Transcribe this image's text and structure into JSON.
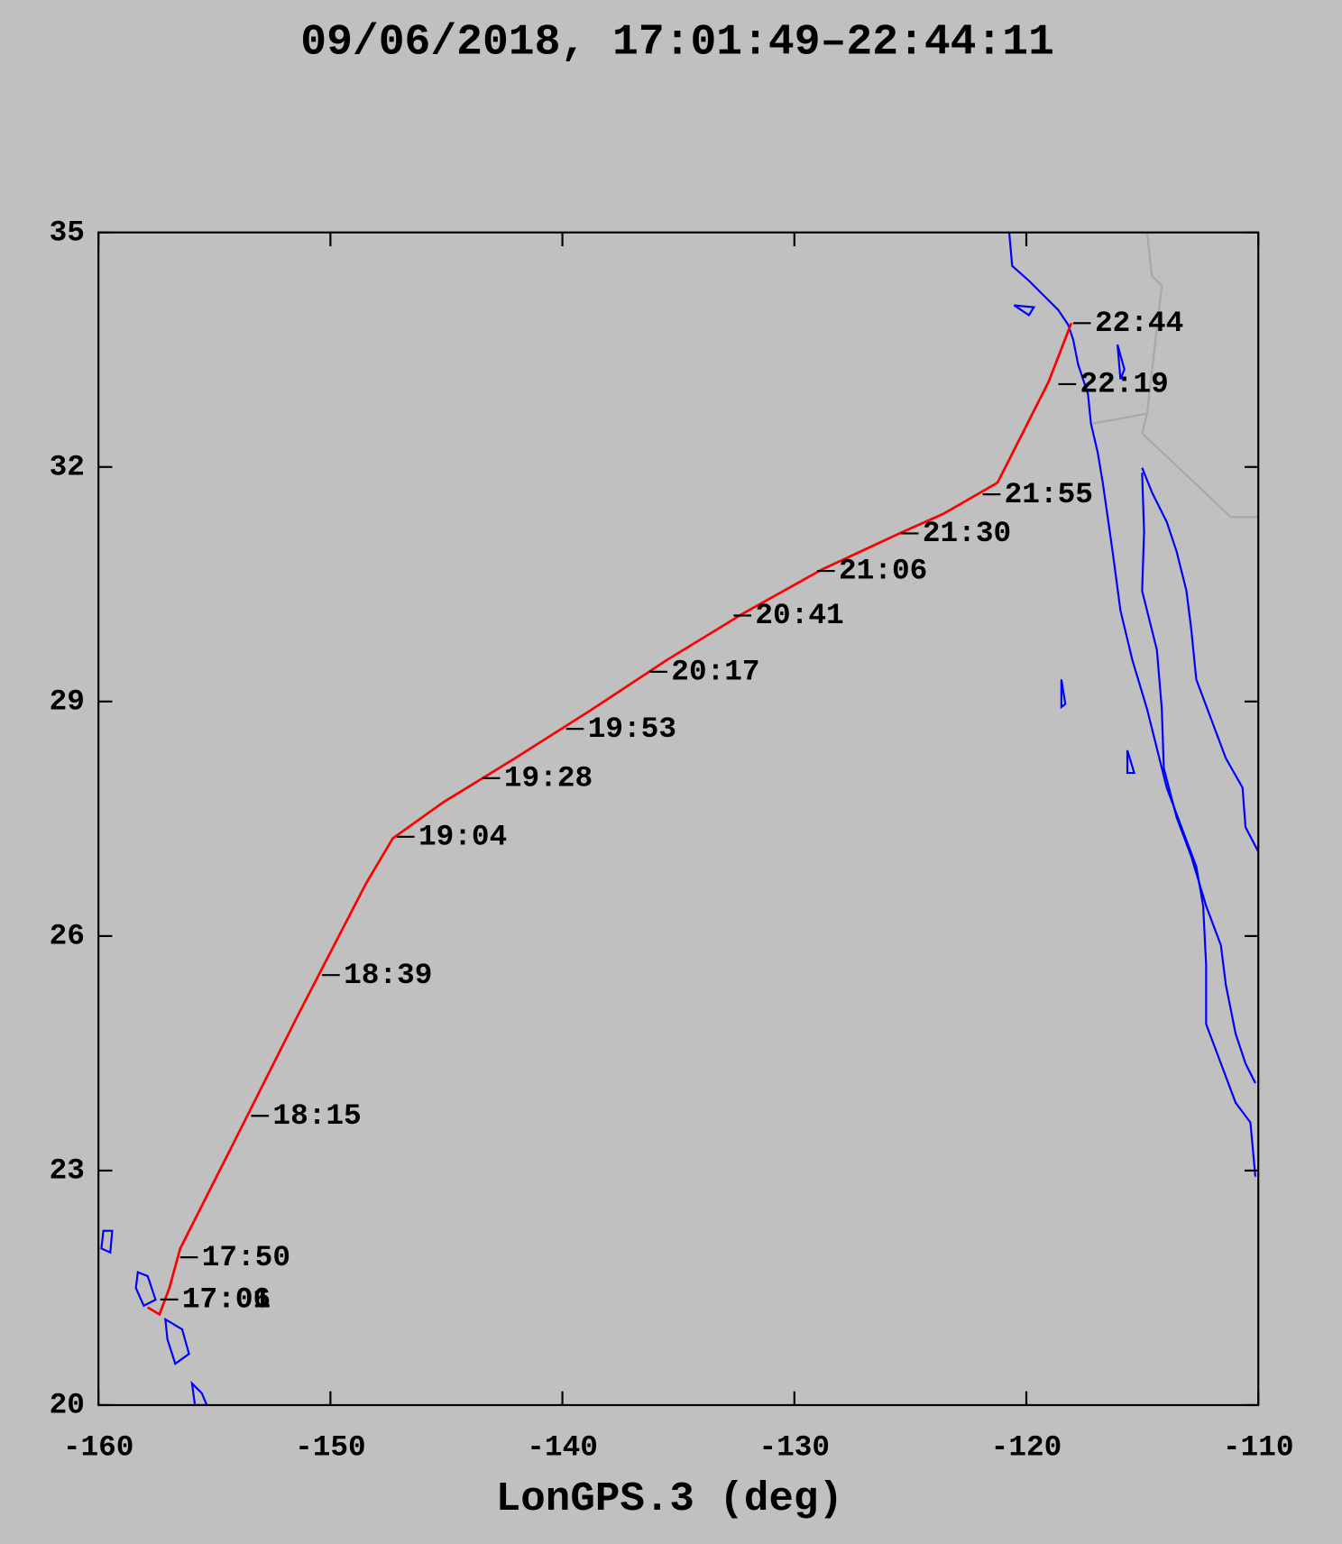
{
  "chart_data": {
    "type": "line",
    "title": "09/06/2018, 17:01:49–22:44:11",
    "x_label": "LonGPS.3 (deg)",
    "color": "#ff0000",
    "x": [
      -157.88,
      -157.37,
      -156.94,
      -156.48,
      -154.23,
      -151.38,
      -148.45,
      -147.31,
      -145.14,
      -142.17,
      -138.77,
      -135.5,
      -132.19,
      -128.8,
      -125.4,
      -123.58,
      -121.24,
      -119.04,
      -118.06
    ],
    "values": [
      21.25,
      21.16,
      21.5,
      22.0,
      23.32,
      25.0,
      26.68,
      27.25,
      27.71,
      28.25,
      28.89,
      29.53,
      30.13,
      30.69,
      31.16,
      31.4,
      31.8,
      33.09,
      33.84
    ],
    "track_labels": [
      {
        "label": "17:01",
        "x": -157.33,
        "y": 21.35
      },
      {
        "label": "17:06",
        "x": -157.33,
        "y": 21.35
      },
      {
        "label": "17:50",
        "x": -156.48,
        "y": 21.89
      },
      {
        "label": "18:15",
        "x": -153.42,
        "y": 23.7
      },
      {
        "label": "18:39",
        "x": -150.36,
        "y": 25.5
      },
      {
        "label": "19:04",
        "x": -147.14,
        "y": 27.27
      },
      {
        "label": "19:28",
        "x": -143.45,
        "y": 28.02
      },
      {
        "label": "19:53",
        "x": -139.84,
        "y": 28.65
      },
      {
        "label": "20:17",
        "x": -136.24,
        "y": 29.38
      },
      {
        "label": "20:41",
        "x": -132.62,
        "y": 30.1
      },
      {
        "label": "21:06",
        "x": -129.02,
        "y": 30.67
      },
      {
        "label": "21:30",
        "x": -125.41,
        "y": 31.15
      },
      {
        "label": "21:55",
        "x": -121.88,
        "y": 31.65
      },
      {
        "label": "22:19",
        "x": -118.62,
        "y": 33.06
      },
      {
        "label": "22:44",
        "x": -117.98,
        "y": 33.84
      }
    ],
    "xlim": [
      -160,
      -110
    ],
    "xticks": [
      -160,
      -150,
      -140,
      -130,
      -120,
      -110
    ],
    "ylim": [
      20,
      35
    ],
    "yticks": [
      20,
      23,
      26,
      29,
      32,
      35
    ]
  }
}
